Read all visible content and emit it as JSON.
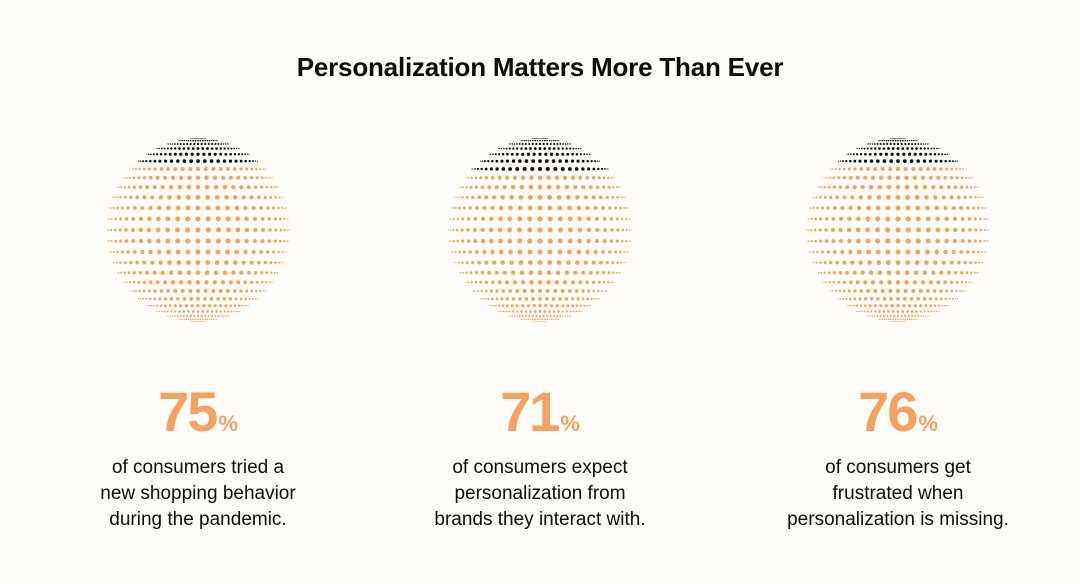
{
  "title": "Personalization Matters More Than Ever",
  "colors": {
    "background": "#FDFCF8",
    "accent": "#F4A261",
    "dark": "#0D0D0D"
  },
  "stats": [
    {
      "value": "75",
      "unit": "%",
      "caption_lines": [
        "of consumers tried a",
        "new shopping behavior",
        "during the pandemic."
      ]
    },
    {
      "value": "71",
      "unit": "%",
      "caption_lines": [
        "of consumers expect",
        "personalization from",
        "brands they interact with."
      ]
    },
    {
      "value": "76",
      "unit": "%",
      "caption_lines": [
        "of consumers get",
        "frustrated when",
        "personalization is missing."
      ]
    }
  ],
  "chart_data": {
    "type": "pie",
    "title": "Personalization Matters More Than Ever",
    "categories": [
      "of consumers tried a new shopping behavior during the pandemic.",
      "of consumers expect personalization from brands they interact with.",
      "of consumers get frustrated when personalization is missing."
    ],
    "values": [
      75,
      71,
      76
    ],
    "unit": "%",
    "visual": "dot-sphere per stat; orange portion = percentage, black top portion = remainder"
  }
}
